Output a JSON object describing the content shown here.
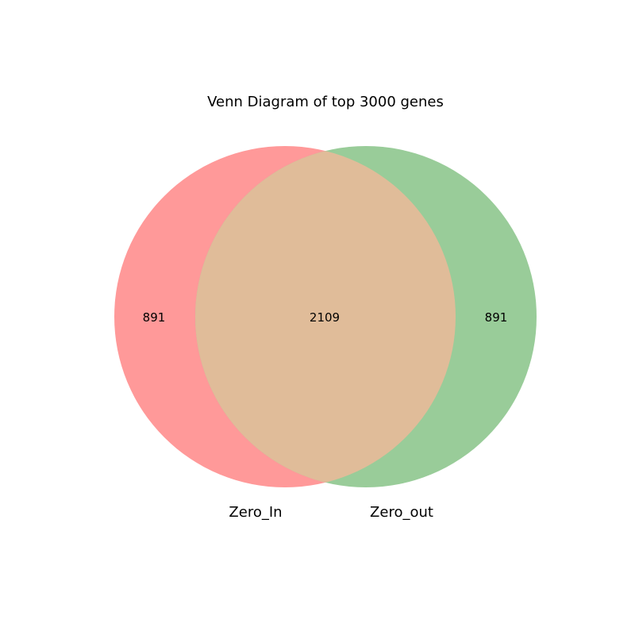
{
  "diagram": {
    "type": "venn",
    "title": "Venn Diagram of top 3000 genes",
    "sets": [
      {
        "name": "Zero_In",
        "color": "#ff9999",
        "only_count": "891"
      },
      {
        "name": "Zero_out",
        "color": "#99cc99",
        "only_count": "891"
      }
    ],
    "intersection": {
      "count": "2109",
      "color": "#e0bc99"
    }
  }
}
